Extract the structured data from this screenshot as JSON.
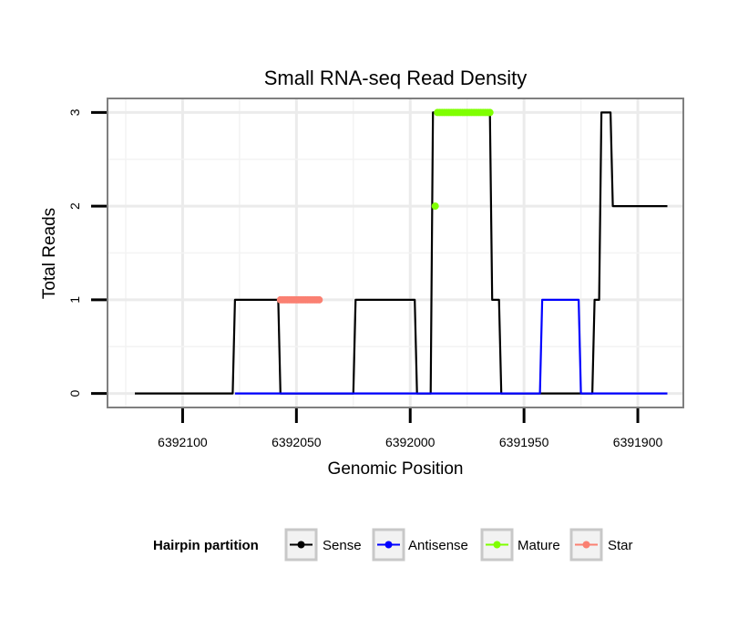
{
  "chart_data": {
    "type": "line",
    "title": "Small RNA-seq Read Density",
    "xlabel": "Genomic Position",
    "ylabel": "Total Reads",
    "xlim": [
      6392133,
      6391880
    ],
    "ylim": [
      -0.15,
      3.15
    ],
    "x_reversed": true,
    "x_ticks": [
      6392100,
      6392050,
      6392000,
      6391950,
      6391900
    ],
    "x_tick_labels": [
      "6392100",
      "6392050",
      "6392000",
      "6391950",
      "6391900"
    ],
    "y_ticks": [
      0,
      1,
      2,
      3
    ],
    "y_tick_labels": [
      "0",
      "1",
      "2",
      "3"
    ],
    "grid": true,
    "legend": {
      "title": "Hairpin partition",
      "placement": "bottom",
      "entries": [
        {
          "label": "Sense",
          "color": "#000000"
        },
        {
          "label": "Antisense",
          "color": "#0000ff"
        },
        {
          "label": "Mature",
          "color": "#7fff00"
        },
        {
          "label": "Star",
          "color": "#fa8072"
        }
      ]
    },
    "series": [
      {
        "name": "Sense",
        "color": "#000000",
        "style": "line",
        "x": [
          6392121,
          6392078,
          6392077,
          6392058,
          6392057,
          6392041,
          6392040,
          6392025,
          6392024,
          6391998,
          6391997,
          6391991,
          6391990,
          6391988,
          6391987,
          6391965,
          6391964,
          6391961,
          6391960,
          6391942,
          6391941,
          6391920,
          6391919,
          6391917,
          6391916,
          6391912,
          6391911,
          6391896,
          6391895,
          6391887
        ],
        "y": [
          0,
          0,
          1,
          1,
          0,
          0,
          0,
          0,
          1,
          1,
          0,
          0,
          3,
          3,
          3,
          3,
          1,
          1,
          0,
          0,
          0,
          0,
          1,
          1,
          3,
          3,
          2,
          2,
          2,
          2
        ]
      },
      {
        "name": "Antisense",
        "color": "#0000ff",
        "style": "line",
        "x": [
          6392077,
          6391943,
          6391942,
          6391926,
          6391925,
          6391887
        ],
        "y": [
          0,
          0,
          1,
          1,
          0,
          0
        ]
      },
      {
        "name": "Mature",
        "color": "#7fff00",
        "style": "points",
        "x": [
          6391989,
          6391988,
          6391987,
          6391986,
          6391985,
          6391984,
          6391983,
          6391982,
          6391981,
          6391980,
          6391979,
          6391978,
          6391977,
          6391976,
          6391975,
          6391974,
          6391973,
          6391972,
          6391971,
          6391970,
          6391969,
          6391968,
          6391967,
          6391966,
          6391965
        ],
        "y": [
          2,
          3,
          3,
          3,
          3,
          3,
          3,
          3,
          3,
          3,
          3,
          3,
          3,
          3,
          3,
          3,
          3,
          3,
          3,
          3,
          3,
          3,
          3,
          3,
          3
        ]
      },
      {
        "name": "Star",
        "color": "#fa8072",
        "style": "points",
        "x": [
          6392057,
          6392056,
          6392055,
          6392054,
          6392053,
          6392052,
          6392051,
          6392050,
          6392049,
          6392048,
          6392047,
          6392046,
          6392045,
          6392044,
          6392043,
          6392042,
          6392041,
          6392040
        ],
        "y": [
          1,
          1,
          1,
          1,
          1,
          1,
          1,
          1,
          1,
          1,
          1,
          1,
          1,
          1,
          1,
          1,
          1,
          1
        ]
      }
    ]
  }
}
